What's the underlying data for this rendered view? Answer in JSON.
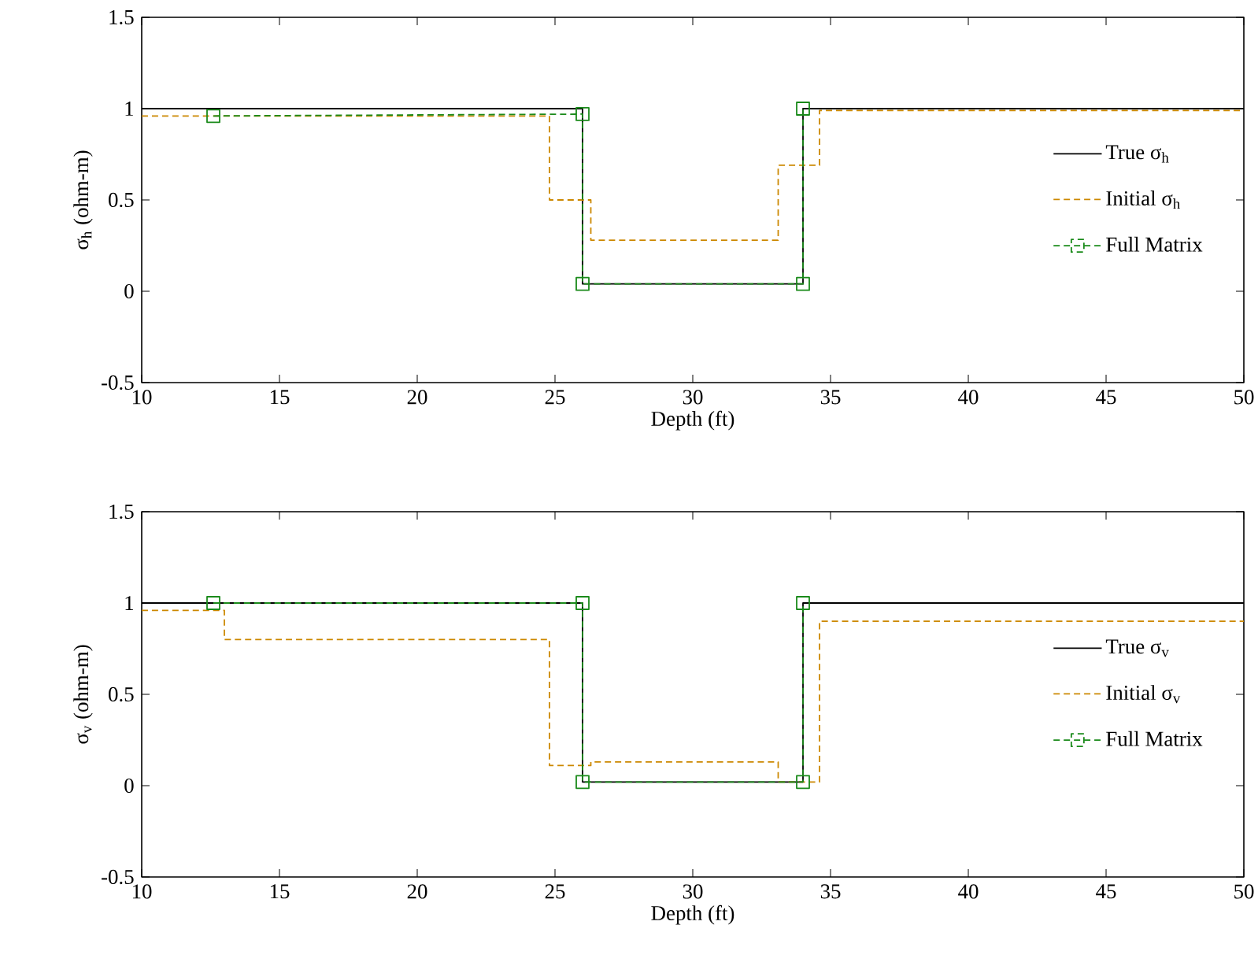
{
  "chart_data": [
    {
      "type": "line",
      "xlabel": "Depth (ft)",
      "ylabel": "σ$_{h}$ (ohm-m)",
      "xlim": [
        10,
        50
      ],
      "ylim": [
        -0.5,
        1.5
      ],
      "xticks": [
        10,
        15,
        20,
        25,
        30,
        35,
        40,
        45,
        50
      ],
      "yticks": [
        -0.5,
        0,
        0.5,
        1,
        1.5
      ],
      "legend": "right",
      "series": [
        {
          "name": "True σ$_{h}$",
          "color": "#000000",
          "line_style": "solid",
          "marker": "none",
          "x": [
            10,
            26,
            26,
            34,
            34,
            50
          ],
          "values": [
            1,
            1,
            0.04,
            0.04,
            1,
            1
          ]
        },
        {
          "name": "Initial σ$_{h}$",
          "color": "#cc8800",
          "line_style": "dashed",
          "marker": "none",
          "x": [
            10,
            24.8,
            24.8,
            26.3,
            26.3,
            33.1,
            33.1,
            34.6,
            34.6,
            50
          ],
          "values": [
            0.96,
            0.96,
            0.5,
            0.5,
            0.28,
            0.28,
            0.69,
            0.69,
            0.99,
            0.99
          ]
        },
        {
          "name": "Full Matrix",
          "color": "#1a8a1a",
          "line_style": "dashed",
          "marker": "square",
          "x": [
            12.6,
            26,
            26,
            34,
            34
          ],
          "values": [
            0.96,
            0.97,
            0.04,
            0.04,
            1
          ]
        }
      ]
    },
    {
      "type": "line",
      "xlabel": "Depth (ft)",
      "ylabel": "σ$_{v}$ (ohm-m)",
      "xlim": [
        10,
        50
      ],
      "ylim": [
        -0.5,
        1.5
      ],
      "xticks": [
        10,
        15,
        20,
        25,
        30,
        35,
        40,
        45,
        50
      ],
      "yticks": [
        -0.5,
        0,
        0.5,
        1,
        1.5
      ],
      "legend": "right",
      "series": [
        {
          "name": "True σ$_{v}$",
          "color": "#000000",
          "line_style": "solid",
          "marker": "none",
          "x": [
            10,
            26,
            26,
            34,
            34,
            50
          ],
          "values": [
            1,
            1,
            0.02,
            0.02,
            1,
            1
          ]
        },
        {
          "name": "Initial σ$_{v}$",
          "color": "#cc8800",
          "line_style": "dashed",
          "marker": "none",
          "x": [
            10,
            13,
            13,
            24.8,
            24.8,
            26.3,
            26.3,
            33.1,
            33.1,
            34.6,
            34.6,
            50
          ],
          "values": [
            0.96,
            0.96,
            0.8,
            0.8,
            0.11,
            0.11,
            0.13,
            0.13,
            0.02,
            0.02,
            0.9,
            0.9
          ]
        },
        {
          "name": "Full Matrix",
          "color": "#1a8a1a",
          "line_style": "dashed",
          "marker": "square",
          "x": [
            12.6,
            26,
            26,
            34,
            34
          ],
          "values": [
            1,
            1,
            0.02,
            0.02,
            1
          ]
        }
      ]
    }
  ]
}
